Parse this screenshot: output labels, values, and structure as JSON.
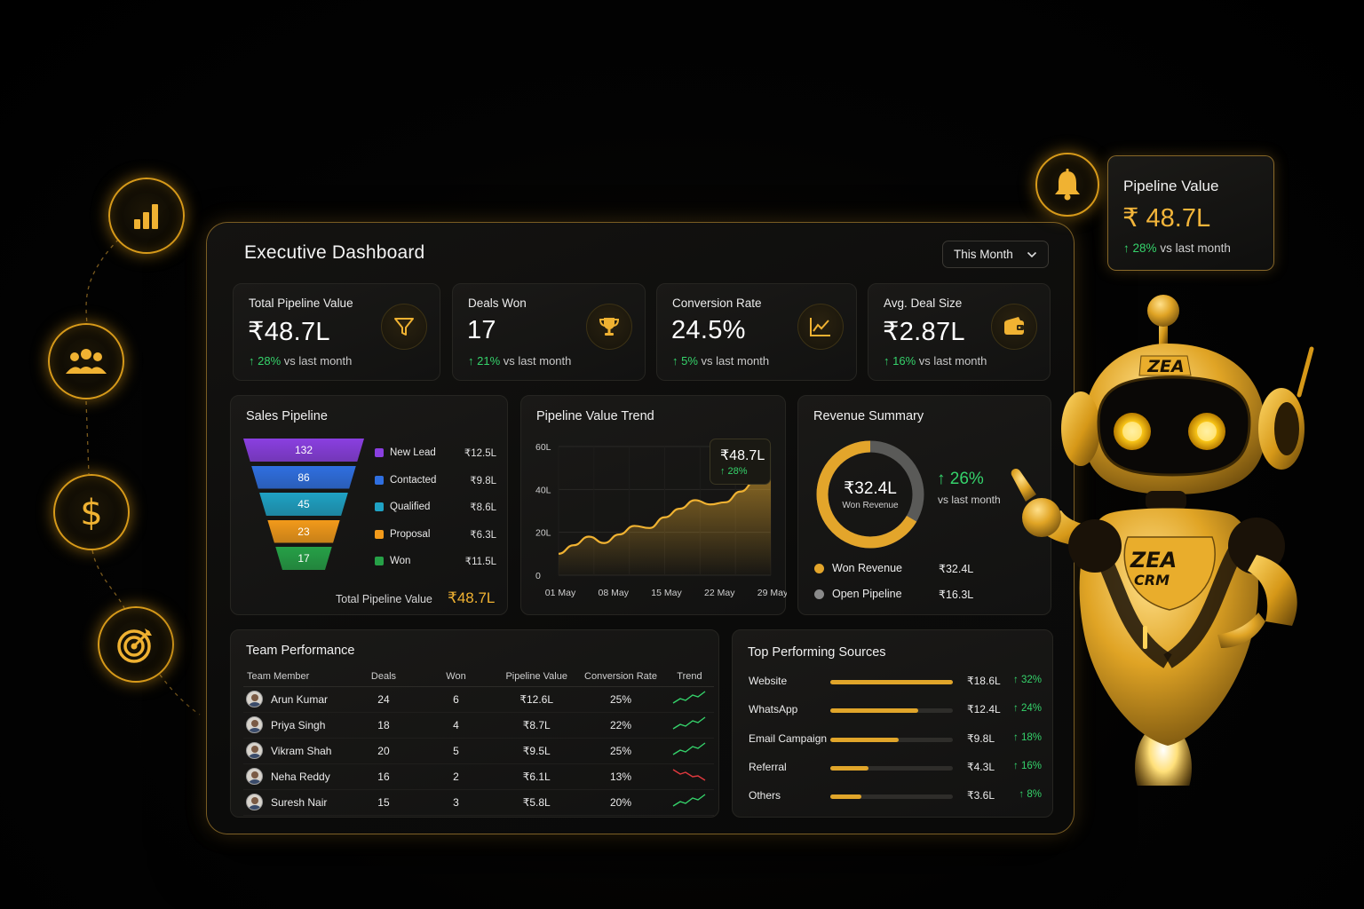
{
  "dashboard": {
    "title": "Executive Dashboard",
    "period_select": "This Month"
  },
  "side_icons": [
    "bar-chart-icon",
    "team-icon",
    "dollar-icon",
    "target-icon"
  ],
  "kpis": [
    {
      "label": "Total Pipeline Value",
      "value": "₹48.7L",
      "delta": "28%",
      "delta_suffix": "vs last month",
      "icon": "funnel-icon"
    },
    {
      "label": "Deals Won",
      "value": "17",
      "delta": "21%",
      "delta_suffix": "vs last month",
      "icon": "trophy-icon"
    },
    {
      "label": "Conversion Rate",
      "value": "24.5%",
      "delta": "5%",
      "delta_suffix": "vs last month",
      "icon": "line-chart-icon"
    },
    {
      "label": "Avg. Deal Size",
      "value": "₹2.87L",
      "delta": "16%",
      "delta_suffix": "vs last month",
      "icon": "wallet-icon"
    }
  ],
  "sales_pipeline": {
    "title": "Sales Pipeline",
    "stages": [
      {
        "count": "132",
        "name": "New Lead",
        "value": "₹12.5L",
        "color": "#8a3fe0"
      },
      {
        "count": "86",
        "name": "Contacted",
        "value": "₹9.8L",
        "color": "#2f6fe0"
      },
      {
        "count": "45",
        "name": "Qualified",
        "value": "₹8.6L",
        "color": "#1fa2c4"
      },
      {
        "count": "23",
        "name": "Proposal",
        "value": "₹6.3L",
        "color": "#f29a1a"
      },
      {
        "count": "17",
        "name": "Won",
        "value": "₹11.5L",
        "color": "#26a047"
      }
    ],
    "total_label": "Total Pipeline Value",
    "total_value": "₹48.7L"
  },
  "pipeline_trend": {
    "title": "Pipeline Value Trend",
    "tooltip_value": "₹48.7L",
    "tooltip_delta": "↑ 28%"
  },
  "chart_data": {
    "type": "area",
    "x": [
      "01 May",
      "03 May",
      "05 May",
      "07 May",
      "09 May",
      "11 May",
      "13 May",
      "15 May",
      "17 May",
      "19 May",
      "21 May",
      "23 May",
      "25 May",
      "27 May",
      "29 May"
    ],
    "y_tick_labels": [
      "0",
      "20L",
      "40L",
      "60L"
    ],
    "ylim": [
      0,
      60
    ],
    "x_tick_labels": [
      "01 May",
      "08 May",
      "15 May",
      "22 May",
      "29 May"
    ],
    "series": [
      {
        "values": [
          10,
          14,
          18,
          15,
          19,
          23,
          22,
          27,
          31,
          35,
          33,
          34,
          39,
          44,
          48.7
        ]
      }
    ],
    "color": "#f0b232",
    "grid": true
  },
  "revenue_summary": {
    "title": "Revenue Summary",
    "center_value": "₹32.4L",
    "center_label": "Won Revenue",
    "won_fraction": 0.665,
    "delta": "↑ 26%",
    "delta_sub": "vs last month",
    "legend": [
      {
        "name": "Won Revenue",
        "value": "₹32.4L",
        "color": "#e3a52b"
      },
      {
        "name": "Open Pipeline",
        "value": "₹16.3L",
        "color": "#8a8a8a"
      }
    ]
  },
  "team": {
    "title": "Team Performance",
    "columns": [
      "Team Member",
      "Deals",
      "Won",
      "Pipeline Value",
      "Conversion Rate",
      "Trend"
    ],
    "rows": [
      {
        "name": "Arun Kumar",
        "deals": "24",
        "won": "6",
        "pipeline": "₹12.6L",
        "conv": "25%",
        "trend": "up"
      },
      {
        "name": "Priya Singh",
        "deals": "18",
        "won": "4",
        "pipeline": "₹8.7L",
        "conv": "22%",
        "trend": "up"
      },
      {
        "name": "Vikram Shah",
        "deals": "20",
        "won": "5",
        "pipeline": "₹9.5L",
        "conv": "25%",
        "trend": "up"
      },
      {
        "name": "Neha Reddy",
        "deals": "16",
        "won": "2",
        "pipeline": "₹6.1L",
        "conv": "13%",
        "trend": "down"
      },
      {
        "name": "Suresh Nair",
        "deals": "15",
        "won": "3",
        "pipeline": "₹5.8L",
        "conv": "20%",
        "trend": "up"
      }
    ]
  },
  "sources": {
    "title": "Top Performing Sources",
    "rows": [
      {
        "name": "Website",
        "value": "₹18.6L",
        "pct": "↑ 32%",
        "fraction": 1.0
      },
      {
        "name": "WhatsApp",
        "value": "₹12.4L",
        "pct": "↑ 24%",
        "fraction": 0.72
      },
      {
        "name": "Email Campaign",
        "value": "₹9.8L",
        "pct": "↑ 18%",
        "fraction": 0.56
      },
      {
        "name": "Referral",
        "value": "₹4.3L",
        "pct": "↑ 16%",
        "fraction": 0.31
      },
      {
        "name": "Others",
        "value": "₹3.6L",
        "pct": "↑ 8%",
        "fraction": 0.25
      }
    ]
  },
  "float_widget": {
    "title": "Pipeline Value",
    "value": "₹ 48.7L",
    "delta": "28%",
    "delta_suffix": "vs last month"
  },
  "robot": {
    "head_text": "ZEA",
    "body_text_1": "ZEA",
    "body_text_2": "CRM"
  },
  "colors": {
    "gold": "#f0b232",
    "green": "#35d36b",
    "red": "#e0393e"
  }
}
